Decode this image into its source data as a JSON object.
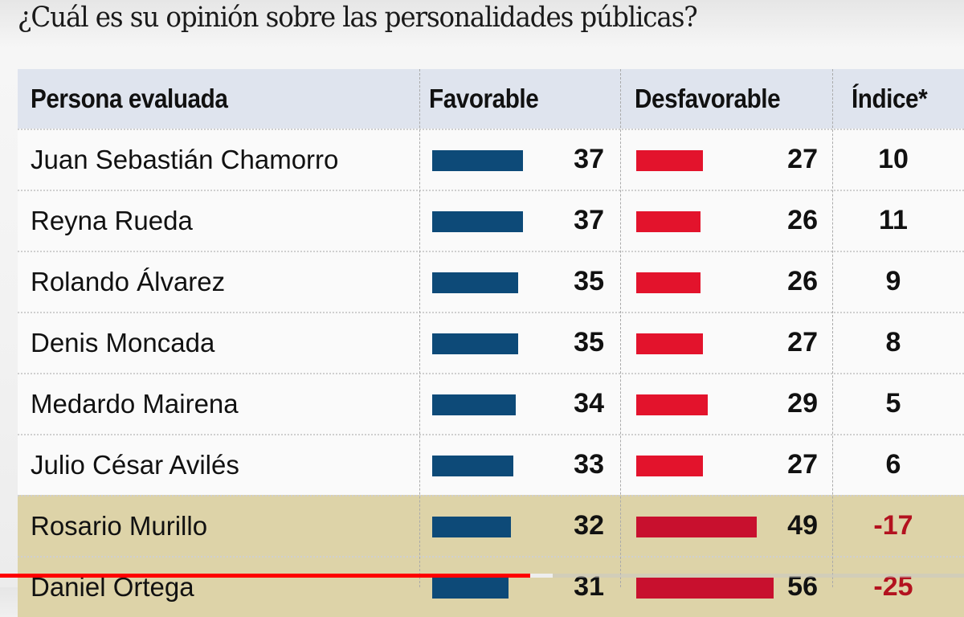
{
  "title": "¿Cuál es su opinión sobre las personalidades públicas?",
  "headers": {
    "persona": "Persona evaluada",
    "favorable": "Favorable",
    "desfavorable": "Desfavorable",
    "indice": "Índice*"
  },
  "colors": {
    "favorable": "#0d4a78",
    "desfavorable": "#e3132c",
    "highlight": "#ddd3a8",
    "negative_index": "#b3121f",
    "progress": "#ff0000"
  },
  "rows": [
    {
      "name": "Juan Sebastián Chamorro",
      "favorable": 37,
      "desfavorable": 27,
      "indice": "10",
      "highlight": false
    },
    {
      "name": "Reyna Rueda",
      "favorable": 37,
      "desfavorable": 26,
      "indice": "11",
      "highlight": false
    },
    {
      "name": "Rolando Álvarez",
      "favorable": 35,
      "desfavorable": 26,
      "indice": "9",
      "highlight": false
    },
    {
      "name": "Denis Moncada",
      "favorable": 35,
      "desfavorable": 27,
      "indice": "8",
      "highlight": false
    },
    {
      "name": "Medardo Mairena",
      "favorable": 34,
      "desfavorable": 29,
      "indice": "5",
      "highlight": false
    },
    {
      "name": "Julio César Avilés",
      "favorable": 33,
      "desfavorable": 27,
      "indice": "6",
      "highlight": false
    },
    {
      "name": "Rosario Murillo",
      "favorable": 32,
      "desfavorable": 49,
      "indice": "-17",
      "highlight": true
    },
    {
      "name": "Daniel Ortega",
      "favorable": 31,
      "desfavorable": 56,
      "indice": "-25",
      "highlight": true
    }
  ],
  "video_progress": 0.55
}
